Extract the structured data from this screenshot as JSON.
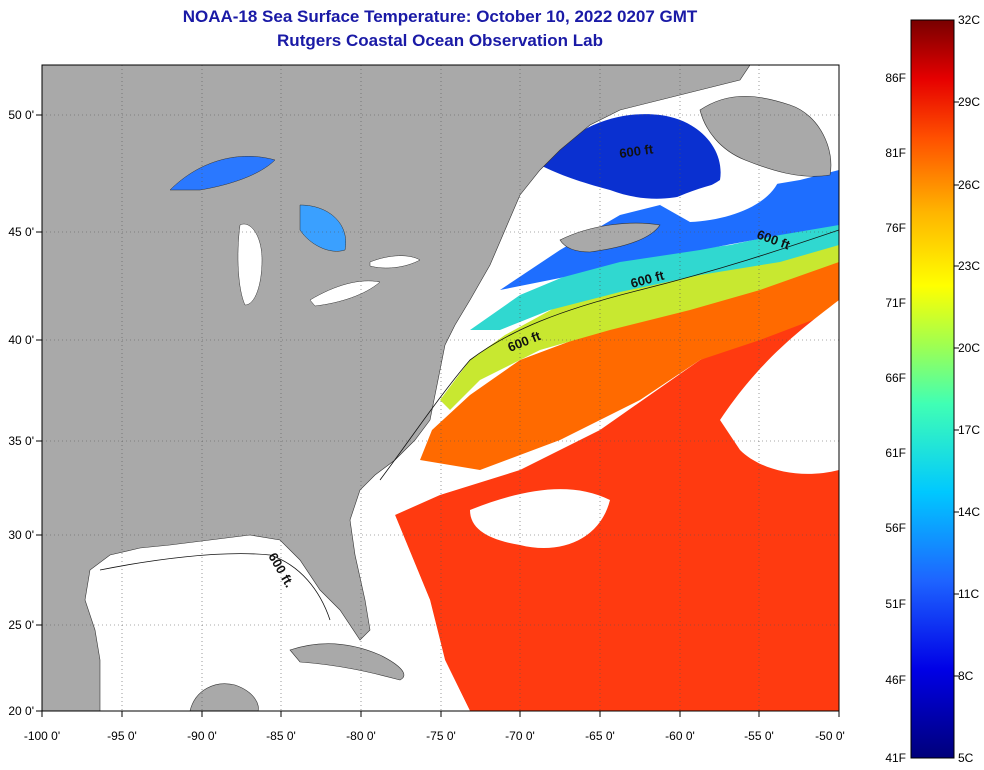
{
  "header": {
    "title": "NOAA-18 Sea Surface Temperature:  October 10, 2022 0207 GMT",
    "subtitle": "Rutgers Coastal Ocean Observation Lab"
  },
  "map": {
    "lon_range": [
      -100,
      -50
    ],
    "lat_range": [
      20,
      52
    ],
    "x_ticks": [
      "-100 0'",
      "-95 0'",
      "-90 0'",
      "-85 0'",
      "-80 0'",
      "-75 0'",
      "-70 0'",
      "-65 0'",
      "-60 0'",
      "-55 0'",
      "-50 0'"
    ],
    "y_ticks": [
      "50 0'",
      "45 0'",
      "40 0'",
      "35 0'",
      "30 0'",
      "25 0'",
      "20 0'"
    ],
    "contour_labels": [
      "600 ft",
      "600 ft",
      "600 ft",
      "600 ft",
      "600 ft."
    ],
    "colors": {
      "land": "#a9a9a9",
      "cloud": "#ffffff",
      "grid": "#555555"
    }
  },
  "colorbar": {
    "celsius_labels": [
      "32C",
      "29C",
      "26C",
      "23C",
      "20C",
      "17C",
      "14C",
      "11C",
      "8C",
      "5C"
    ],
    "fahrenheit_labels": [
      "86F",
      "81F",
      "76F",
      "71F",
      "66F",
      "61F",
      "56F",
      "51F",
      "46F",
      "41F"
    ]
  }
}
